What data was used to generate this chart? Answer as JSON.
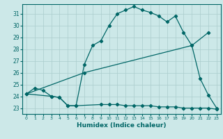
{
  "xlabel": "Humidex (Indice chaleur)",
  "bg_color": "#cce8e8",
  "grid_color": "#aacccc",
  "line_color": "#006666",
  "ylim": [
    22.5,
    31.8
  ],
  "xlim": [
    -0.5,
    23.5
  ],
  "yticks": [
    23,
    24,
    25,
    26,
    27,
    28,
    29,
    30,
    31
  ],
  "xticks": [
    0,
    1,
    2,
    3,
    4,
    5,
    6,
    7,
    8,
    9,
    10,
    11,
    12,
    13,
    14,
    15,
    16,
    17,
    18,
    19,
    20,
    21,
    22,
    23
  ],
  "line1_x": [
    0,
    1,
    2,
    3,
    4,
    5,
    6,
    7,
    8,
    9,
    10,
    11,
    12,
    13,
    14,
    15,
    16,
    17,
    18,
    19,
    20,
    21,
    22,
    23
  ],
  "line1_y": [
    24.2,
    24.7,
    24.5,
    24.0,
    23.9,
    23.2,
    23.2,
    26.7,
    28.3,
    28.7,
    30.0,
    31.0,
    31.3,
    31.6,
    31.3,
    31.1,
    30.8,
    30.3,
    30.8,
    29.4,
    28.3,
    25.5,
    24.1,
    23.0
  ],
  "line2_x": [
    0,
    7,
    20,
    22
  ],
  "line2_y": [
    24.2,
    26.0,
    28.3,
    29.4
  ],
  "line3_x": [
    0,
    3,
    4,
    5,
    6,
    9,
    10,
    11,
    12,
    13,
    14,
    15,
    16,
    17,
    18,
    19,
    20,
    21,
    22,
    23
  ],
  "line3_y": [
    24.2,
    24.0,
    23.9,
    23.2,
    23.2,
    23.3,
    23.3,
    23.3,
    23.2,
    23.2,
    23.2,
    23.2,
    23.1,
    23.1,
    23.1,
    23.0,
    23.0,
    23.0,
    23.0,
    22.9
  ],
  "tick_fontsize": 5.5,
  "xlabel_fontsize": 6.5
}
